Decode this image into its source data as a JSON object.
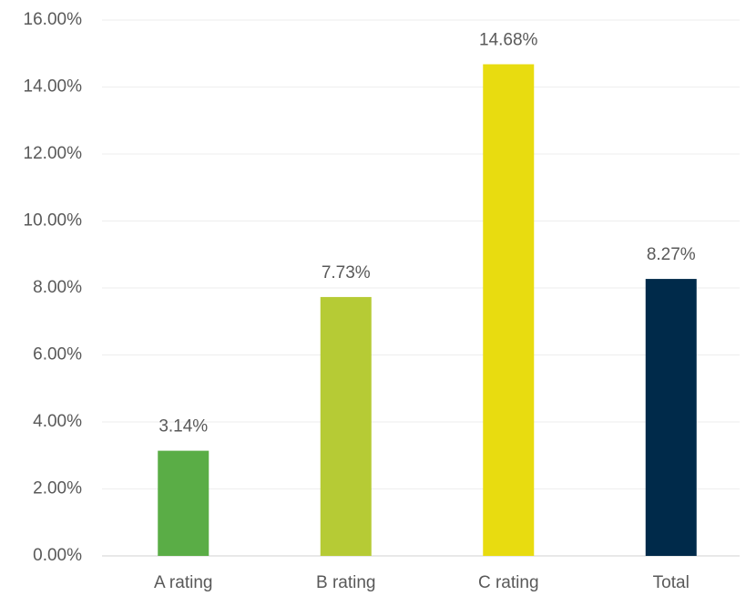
{
  "chart_data": {
    "type": "bar",
    "categories": [
      "A rating",
      "B rating",
      "C rating",
      "Total"
    ],
    "values": [
      3.14,
      7.73,
      14.68,
      8.27
    ],
    "value_labels": [
      "3.14%",
      "7.73%",
      "14.68%",
      "8.27%"
    ],
    "colors": [
      "#5aad46",
      "#b6cb35",
      "#e8dc10",
      "#002a4a"
    ],
    "ylim": [
      0,
      16
    ],
    "yticks": [
      {
        "value": 0,
        "label": "0.00%"
      },
      {
        "value": 2,
        "label": "2.00%"
      },
      {
        "value": 4,
        "label": "4.00%"
      },
      {
        "value": 6,
        "label": "6.00%"
      },
      {
        "value": 8,
        "label": "8.00%"
      },
      {
        "value": 10,
        "label": "10.00%"
      },
      {
        "value": 12,
        "label": "12.00%"
      },
      {
        "value": 14,
        "label": "14.00%"
      },
      {
        "value": 16,
        "label": "16.00%"
      }
    ],
    "grid": true
  }
}
